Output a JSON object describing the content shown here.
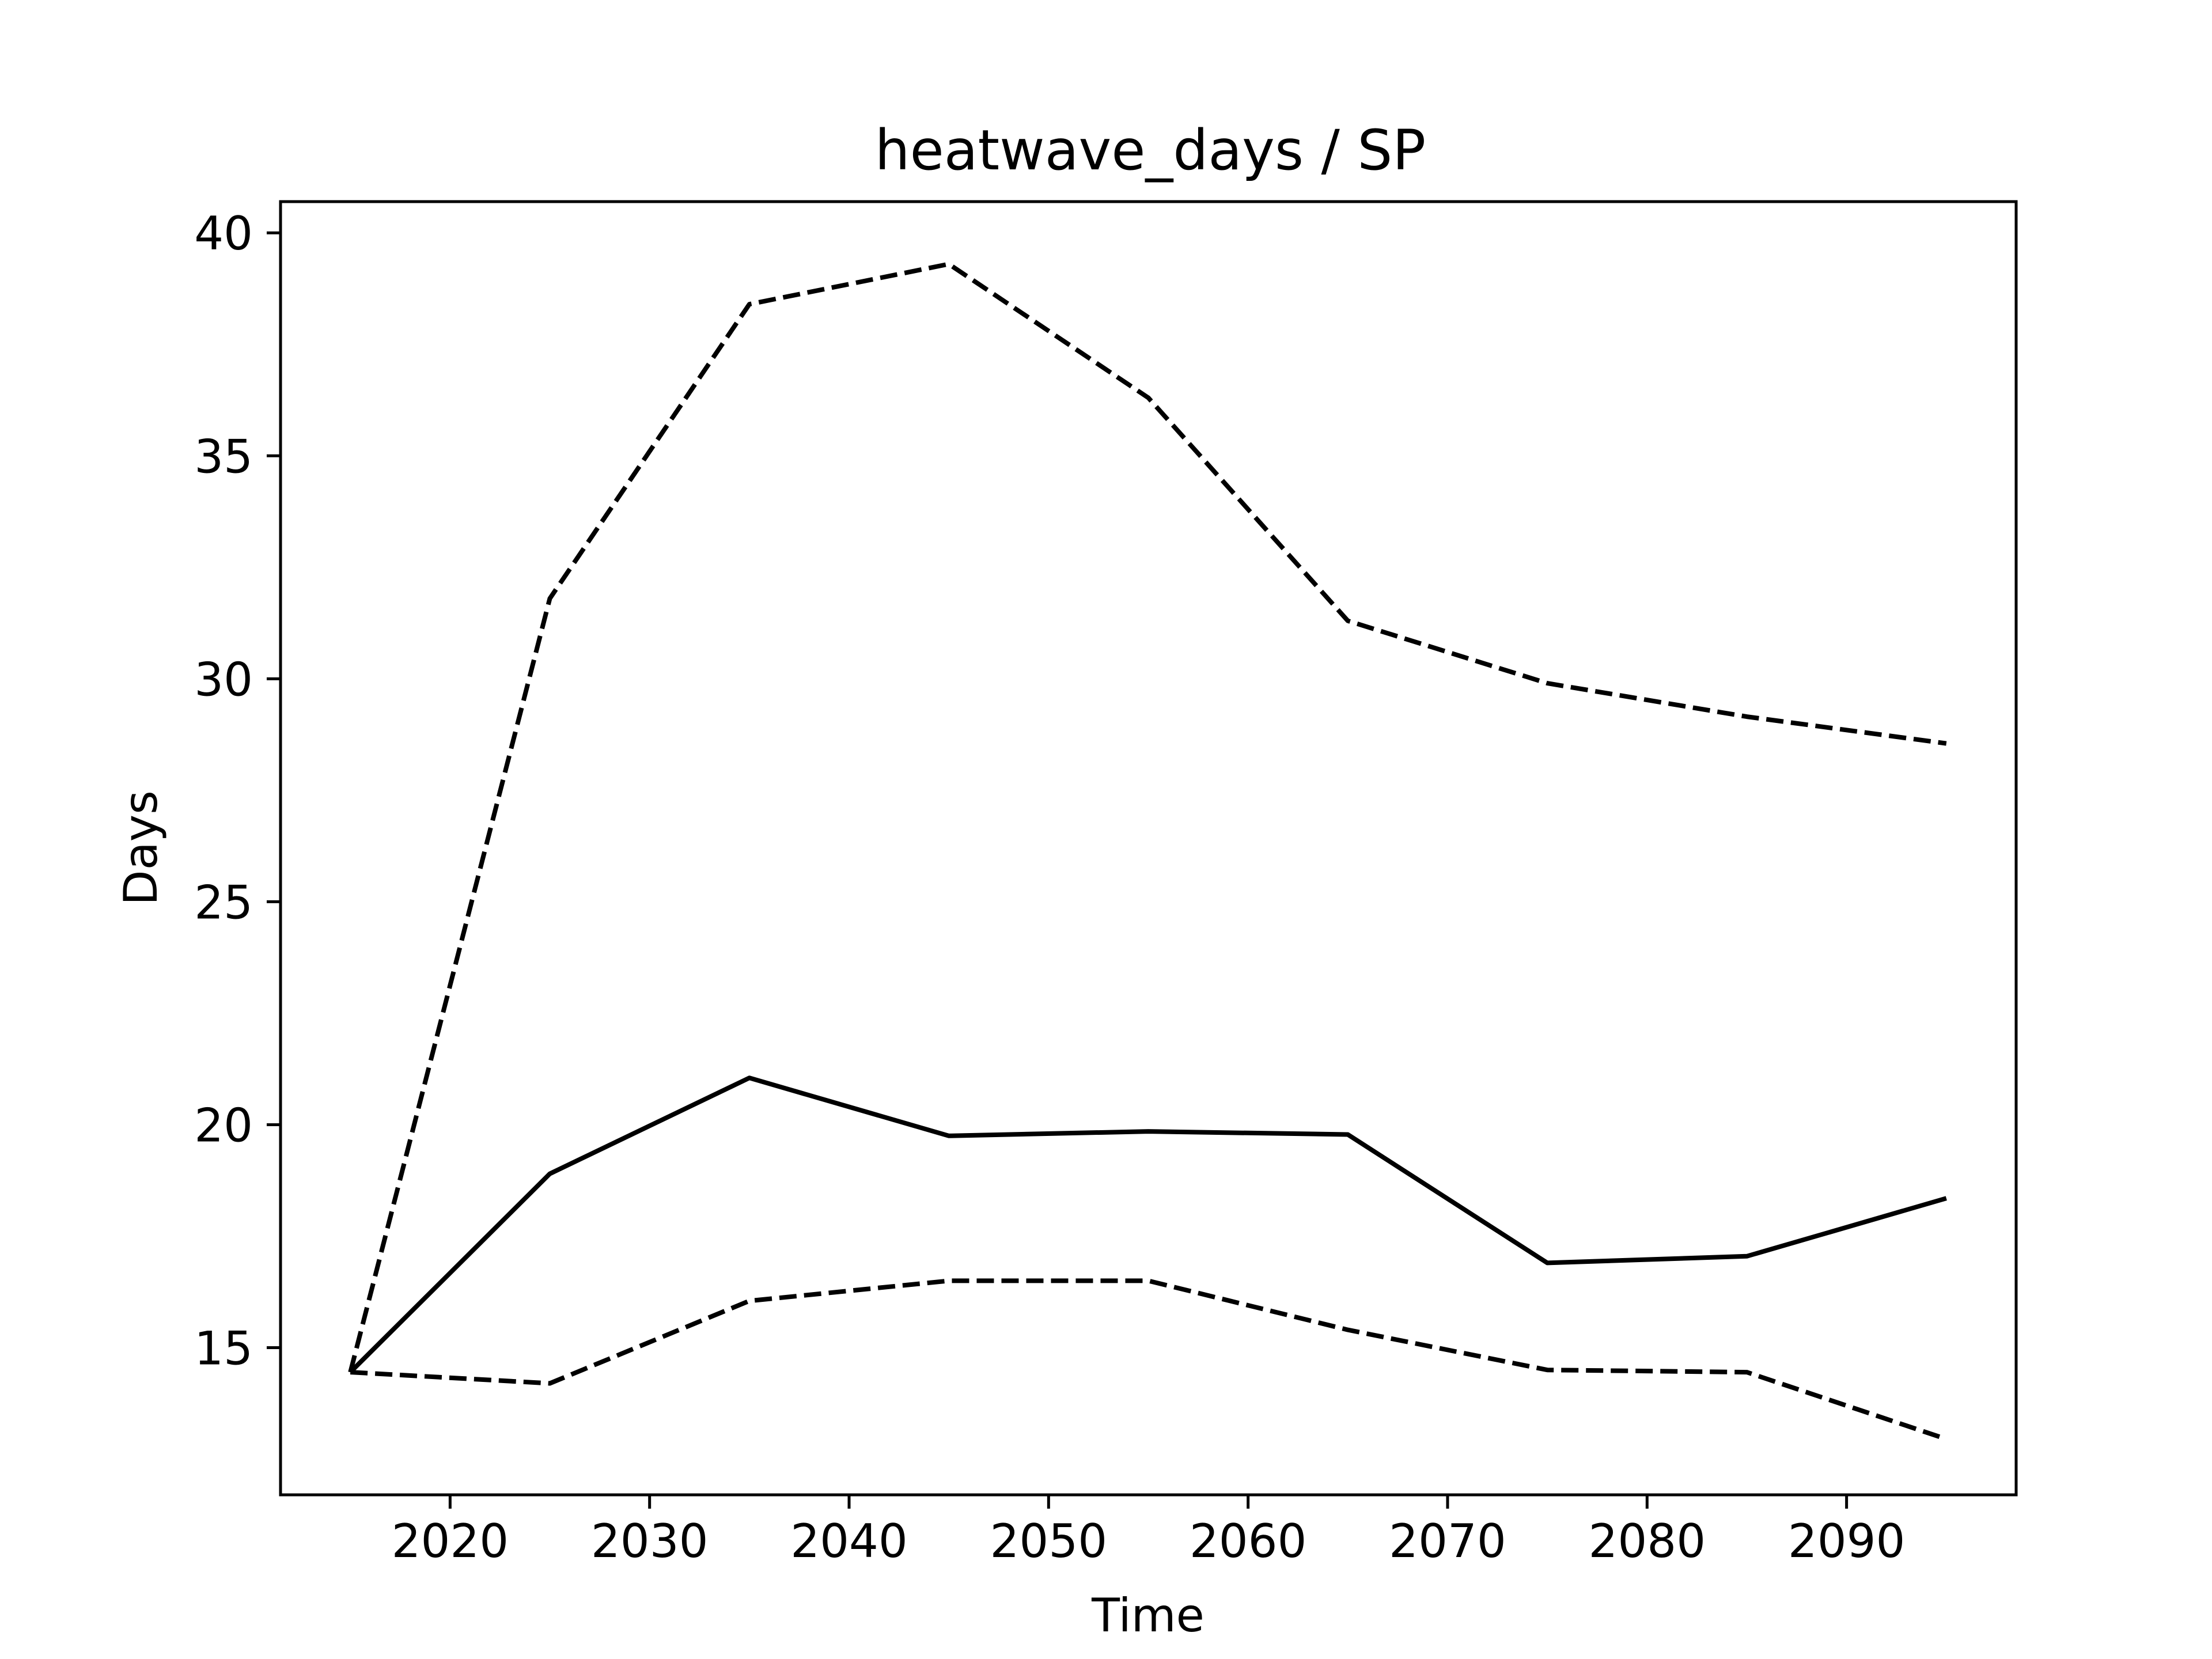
{
  "chart_data": {
    "type": "line",
    "title": "heatwave_days / SP",
    "xlabel": "Time",
    "ylabel": "Days",
    "xlim": [
      2011.5,
      2098.5
    ],
    "ylim": [
      11.7,
      40.7
    ],
    "xticks": [
      2020,
      2030,
      2040,
      2050,
      2060,
      2070,
      2080,
      2090
    ],
    "yticks": [
      15,
      20,
      25,
      30,
      35,
      40
    ],
    "grid": false,
    "x": [
      2015,
      2025,
      2035,
      2045,
      2055,
      2065,
      2075,
      2085,
      2095
    ],
    "series": [
      {
        "style": "solid",
        "color": "#000000",
        "values": [
          14.45,
          18.9,
          21.05,
          19.75,
          19.85,
          19.78,
          16.9,
          17.05,
          18.35
        ]
      },
      {
        "style": "dashed",
        "color": "#000000",
        "values": [
          14.45,
          31.8,
          38.4,
          39.3,
          36.3,
          31.3,
          29.9,
          29.15,
          28.55
        ]
      },
      {
        "style": "dashed",
        "color": "#000000",
        "values": [
          14.45,
          14.2,
          16.05,
          16.5,
          16.5,
          15.4,
          14.5,
          14.45,
          12.95
        ]
      }
    ]
  }
}
